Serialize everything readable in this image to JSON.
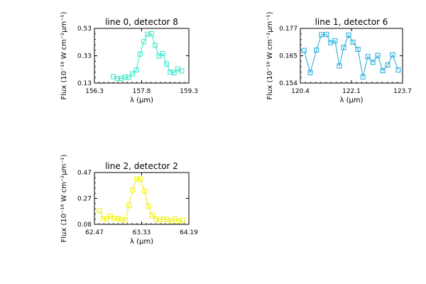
{
  "chart_data": [
    {
      "type": "line",
      "title": "line 0, detector 8",
      "xlabel": "λ (μm)",
      "ylabel": "Flux (10⁻¹⁸ W cm⁻²μm⁻¹)",
      "xlim": [
        156.3,
        159.3
      ],
      "ylim": [
        0.13,
        0.53
      ],
      "xticks": [
        "156.3",
        "157.8",
        "159.3"
      ],
      "yticks": [
        "0.13",
        "0.33",
        "0.53"
      ],
      "color": "#2ee8c8",
      "x": [
        156.9,
        157.03,
        157.15,
        157.27,
        157.39,
        157.51,
        157.63,
        157.75,
        157.87,
        157.99,
        158.11,
        158.23,
        158.35,
        158.47,
        158.59,
        158.71,
        158.83,
        158.95,
        159.07
      ],
      "y": [
        0.177,
        0.163,
        0.163,
        0.173,
        0.171,
        0.198,
        0.226,
        0.342,
        0.433,
        0.487,
        0.491,
        0.406,
        0.328,
        0.346,
        0.27,
        0.211,
        0.205,
        0.233,
        0.219
      ]
    },
    {
      "type": "line",
      "title": "line 1, detector 6",
      "xlabel": "λ (μm)",
      "ylabel": "Flux (10⁻¹⁸ W cm⁻²μm⁻¹)",
      "xlim": [
        120.4,
        123.7
      ],
      "ylim": [
        0.154,
        0.177
      ],
      "xticks": [
        "120.4",
        "122.1",
        "123.7"
      ],
      "yticks": [
        "0.154",
        "0.165",
        "0.177"
      ],
      "color": "#1aa9d8",
      "x": [
        120.52,
        120.72,
        120.92,
        121.08,
        121.24,
        121.38,
        121.52,
        121.66,
        121.8,
        121.96,
        122.1,
        122.26,
        122.42,
        122.58,
        122.74,
        122.9,
        123.06,
        123.22,
        123.38,
        123.56
      ],
      "y": [
        0.1677,
        0.1584,
        0.1679,
        0.1743,
        0.1745,
        0.171,
        0.1718,
        0.1612,
        0.169,
        0.1742,
        0.1712,
        0.1682,
        0.1566,
        0.1651,
        0.1627,
        0.1656,
        0.1592,
        0.1616,
        0.1659,
        0.1595
      ]
    },
    {
      "type": "line",
      "title": "line 2, detector 2",
      "xlabel": "λ (μm)",
      "ylabel": "Flux (10⁻¹⁸ W cm⁻²μm⁻¹)",
      "xlim": [
        62.47,
        64.19
      ],
      "ylim": [
        0.08,
        0.47
      ],
      "xticks": [
        "62.47",
        "63.33",
        "64.19"
      ],
      "yticks": [
        "0.08",
        "0.27",
        "0.47"
      ],
      "color": "#f2f200",
      "x": [
        62.56,
        62.63,
        62.69,
        62.76,
        62.83,
        62.9,
        62.96,
        63.03,
        63.1,
        63.17,
        63.24,
        63.31,
        63.38,
        63.45,
        63.52,
        63.59,
        63.66,
        63.73,
        63.8,
        63.87,
        63.94,
        64.01,
        64.08
      ],
      "y": [
        0.184,
        0.123,
        0.122,
        0.141,
        0.123,
        0.125,
        0.115,
        0.112,
        0.224,
        0.339,
        0.421,
        0.422,
        0.331,
        0.217,
        0.148,
        0.121,
        0.115,
        0.119,
        0.118,
        0.103,
        0.121,
        0.102,
        0.111
      ]
    }
  ]
}
